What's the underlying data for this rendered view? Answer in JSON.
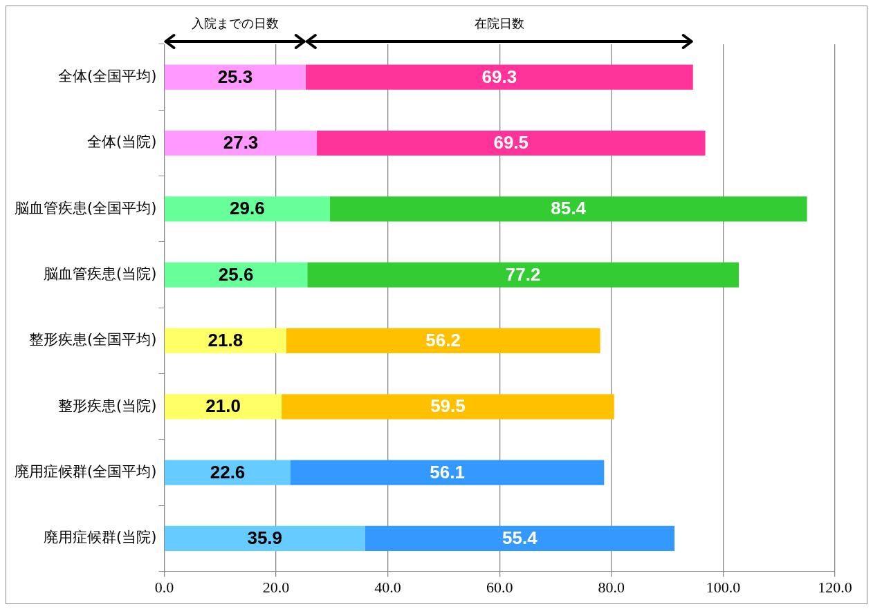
{
  "chart_data": {
    "type": "bar",
    "orientation": "horizontal",
    "stacked": true,
    "categories": [
      "全体(全国平均)",
      "全体(当院)",
      "脳血管疾患(全国平均)",
      "脳血管疾患(当院)",
      "整形疾患(全国平均)",
      "整形疾患(当院)",
      "廃用症候群(全国平均)",
      "廃用症候群(当院)"
    ],
    "series": [
      {
        "colors": [
          "#ff99ff",
          "#ff99ff",
          "#66ff99",
          "#66ff99",
          "#ffff66",
          "#ffff66",
          "#66ccff",
          "#66ccff"
        ],
        "values": [
          25.3,
          27.3,
          29.6,
          25.6,
          21.8,
          21.0,
          22.6,
          35.9
        ],
        "value_labels": [
          "25.3",
          "27.3",
          "29.6",
          "25.6",
          "21.8",
          "21.0",
          "22.6",
          "35.9"
        ]
      },
      {
        "colors": [
          "#ff3399",
          "#ff3399",
          "#33cc33",
          "#33cc33",
          "#ffc000",
          "#ffc000",
          "#3399ff",
          "#3399ff"
        ],
        "values": [
          69.3,
          69.5,
          85.4,
          77.2,
          56.2,
          59.5,
          56.1,
          55.4
        ],
        "value_labels": [
          "69.3",
          "69.5",
          "85.4",
          "77.2",
          "56.2",
          "59.5",
          "56.1",
          "55.4"
        ]
      }
    ],
    "xlim": [
      0,
      120
    ],
    "xticks": [
      {
        "value": 0,
        "label": "0.0"
      },
      {
        "value": 20,
        "label": "20.0"
      },
      {
        "value": 40,
        "label": "40.0"
      },
      {
        "value": 60,
        "label": "60.0"
      },
      {
        "value": 80,
        "label": "80.0"
      },
      {
        "value": 100,
        "label": "100.0"
      },
      {
        "value": 120,
        "label": "120.0"
      }
    ],
    "grid": "x",
    "legend": false,
    "annotations": [
      "入院までの日数",
      "在院日数"
    ]
  }
}
